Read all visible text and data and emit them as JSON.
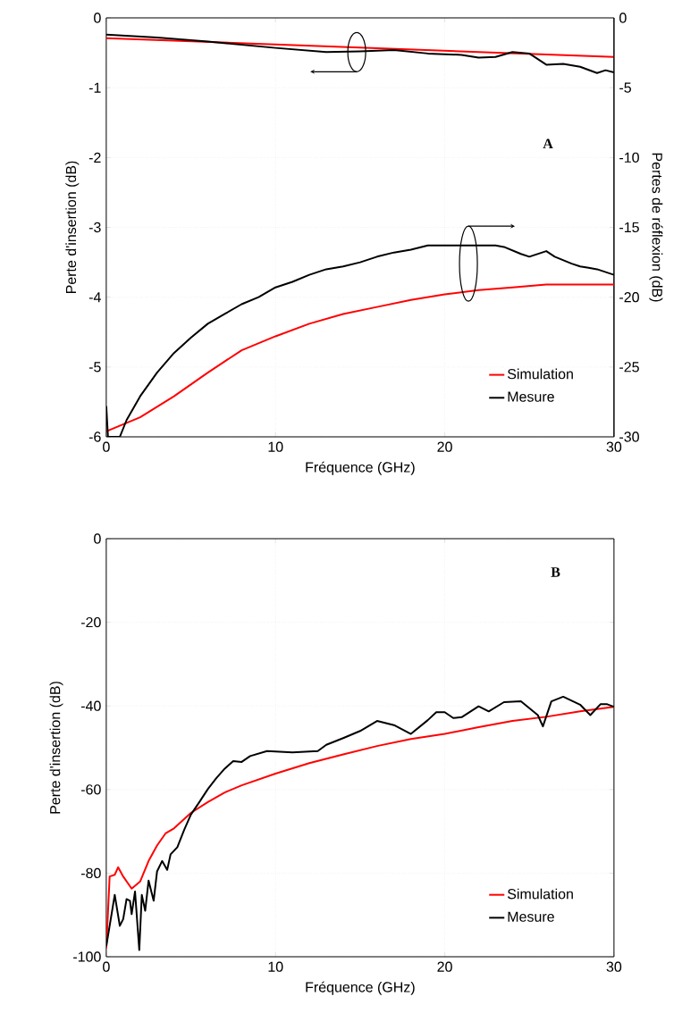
{
  "chart_data": [
    {
      "type": "line",
      "xlabel": "Fréquence (GHz)",
      "ylabel": "Perte d'insertion (dB)",
      "y2label": "Pertes de réflexion (dB)",
      "annotations": [
        "A"
      ],
      "xlim": [
        0,
        30
      ],
      "xticks": [
        0,
        10,
        20,
        30
      ],
      "ylim": [
        -6,
        0
      ],
      "yticks": [
        -6,
        -5,
        -4,
        -3,
        -2,
        -1,
        0
      ],
      "y2lim": [
        -30,
        0
      ],
      "y2ticks": [
        -30,
        -25,
        -20,
        -15,
        -10,
        -5,
        0
      ],
      "grid": true,
      "legend": "bottom right",
      "series": [
        {
          "color": "#ff0000",
          "x": [
            0,
            30
          ],
          "values": [
            -0.29,
            -0.56
          ]
        },
        {
          "color": "#000000",
          "x": [
            0,
            3,
            6,
            10,
            13,
            15,
            17,
            19,
            21,
            22,
            23,
            24,
            25,
            26,
            27,
            28,
            29,
            29.5,
            30
          ],
          "values": [
            -0.24,
            -0.28,
            -0.34,
            -0.43,
            -0.49,
            -0.48,
            -0.46,
            -0.51,
            -0.53,
            -0.57,
            -0.56,
            -0.49,
            -0.51,
            -0.67,
            -0.66,
            -0.7,
            -0.79,
            -0.75,
            -0.78
          ]
        },
        {
          "name": "Simulation",
          "color": "#ff0000",
          "axis": "y2",
          "x": [
            0,
            2,
            4,
            6,
            8,
            10,
            12,
            14,
            16,
            18,
            20,
            22,
            24,
            26,
            28,
            30
          ],
          "values": [
            -29.6,
            -28.6,
            -27.1,
            -25.4,
            -23.8,
            -22.8,
            -21.9,
            -21.2,
            -20.7,
            -20.2,
            -19.8,
            -19.5,
            -19.3,
            -19.1,
            -19.1,
            -19.1
          ]
        },
        {
          "name": "Mesure",
          "color": "#000000",
          "axis": "y2",
          "x": [
            0,
            0.1,
            0.8,
            1.2,
            2,
            3,
            4,
            5,
            6,
            7,
            8,
            9,
            10,
            11,
            12,
            13,
            14,
            15,
            16,
            17,
            18,
            19,
            20,
            21,
            22,
            23,
            23.5,
            24.5,
            25,
            26,
            26.5,
            27.5,
            28,
            28.5,
            29,
            30
          ],
          "values": [
            -27.8,
            -30,
            -30,
            -28.8,
            -27.1,
            -25.4,
            -24.0,
            -22.9,
            -21.9,
            -21.2,
            -20.5,
            -20.0,
            -19.3,
            -18.9,
            -18.4,
            -18.0,
            -17.8,
            -17.5,
            -17.1,
            -16.8,
            -16.6,
            -16.3,
            -16.3,
            -16.3,
            -16.3,
            -16.3,
            -16.4,
            -16.9,
            -17.1,
            -16.7,
            -17.1,
            -17.6,
            -17.8,
            -17.9,
            -18.0,
            -18.4
          ]
        }
      ]
    },
    {
      "type": "line",
      "xlabel": "Fréquence (GHz)",
      "ylabel": "Perte d'insertion (dB)",
      "annotations": [
        "B"
      ],
      "xlim": [
        0,
        30
      ],
      "xticks": [
        0,
        10,
        20,
        30
      ],
      "ylim": [
        -100,
        0
      ],
      "yticks": [
        -100,
        -80,
        -60,
        -40,
        -20,
        0
      ],
      "grid": true,
      "legend": "bottom right",
      "series": [
        {
          "name": "Simulation",
          "color": "#ff0000",
          "x": [
            0,
            0.2,
            0.5,
            0.7,
            1,
            1.5,
            2,
            2.5,
            3,
            3.5,
            4,
            5,
            6,
            7,
            8,
            10,
            12,
            14,
            16,
            18,
            20,
            22,
            24,
            26,
            28,
            30
          ],
          "values": [
            -98,
            -80.8,
            -80.4,
            -78.6,
            -80.8,
            -83.7,
            -82,
            -77.1,
            -73.4,
            -70.5,
            -69.3,
            -65.6,
            -63,
            -60.7,
            -59,
            -56.2,
            -53.7,
            -51.6,
            -49.6,
            -47.9,
            -46.7,
            -45.1,
            -43.6,
            -42.6,
            -41.3,
            -40.2
          ]
        },
        {
          "name": "Mesure",
          "color": "#000000",
          "x": [
            0,
            0.5,
            0.8,
            1.0,
            1.2,
            1.4,
            1.5,
            1.7,
            1.95,
            2.1,
            2.3,
            2.5,
            2.8,
            3.0,
            3.3,
            3.6,
            3.8,
            4.2,
            4.6,
            5,
            5.5,
            6,
            6.5,
            7,
            7.5,
            8,
            8.5,
            9.5,
            11,
            12.5,
            13,
            14,
            15,
            16,
            17,
            18,
            19,
            19.5,
            20,
            20.5,
            21,
            22,
            22.6,
            23.5,
            24.5,
            25.5,
            25.8,
            26.3,
            27,
            28,
            28.6,
            29.2,
            29.6,
            30
          ],
          "values": [
            -97.5,
            -85.2,
            -92.6,
            -91,
            -86.2,
            -86.6,
            -89.8,
            -84.4,
            -98.4,
            -85.2,
            -89,
            -81.8,
            -86.6,
            -79.6,
            -77.1,
            -79.2,
            -75.5,
            -73.8,
            -69.7,
            -66,
            -63,
            -59.9,
            -57.3,
            -55,
            -53.2,
            -53.4,
            -52,
            -50.8,
            -51.1,
            -50.8,
            -49.3,
            -47.7,
            -46,
            -43.6,
            -44.6,
            -46.7,
            -43.4,
            -41.5,
            -41.5,
            -42.9,
            -42.7,
            -40.1,
            -41.3,
            -39.1,
            -38.9,
            -42.2,
            -44.9,
            -38.9,
            -37.8,
            -39.7,
            -42.2,
            -39.6,
            -39.6,
            -40.2
          ]
        }
      ]
    }
  ]
}
